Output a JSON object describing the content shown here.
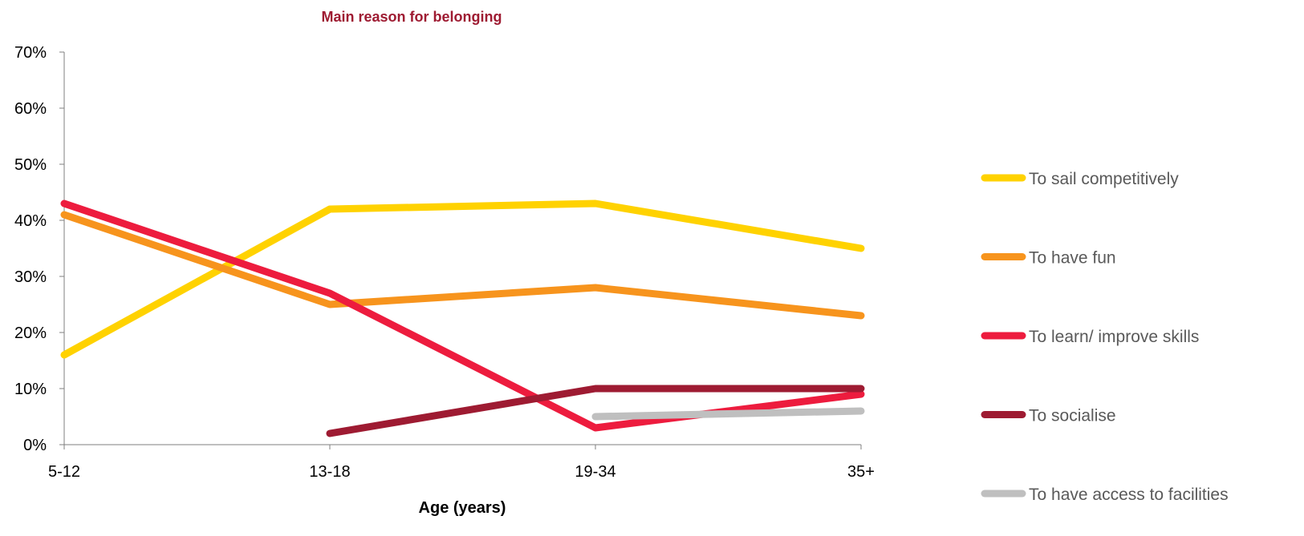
{
  "chart_data": {
    "type": "line",
    "title": "Main reason for belonging",
    "xlabel": "Age (years)",
    "ylabel": "",
    "categories": [
      "5-12",
      "13-18",
      "19-34",
      "35+"
    ],
    "ylim": [
      0,
      70
    ],
    "yticks": [
      0,
      10,
      20,
      30,
      40,
      50,
      60,
      70
    ],
    "ytick_labels": [
      "0%",
      "10%",
      "20%",
      "30%",
      "40%",
      "50%",
      "60%",
      "70%"
    ],
    "grid": false,
    "legend_position": "right",
    "series": [
      {
        "name": "To sail competitively",
        "color": "#FFD200",
        "values": [
          16,
          42,
          43,
          35
        ]
      },
      {
        "name": "To have fun",
        "color": "#F7941D",
        "values": [
          41,
          25,
          28,
          23
        ]
      },
      {
        "name": "To learn/ improve skills",
        "color": "#ED1C3E",
        "values": [
          43,
          27,
          3,
          9
        ]
      },
      {
        "name": "To socialise",
        "color": "#9E1B32",
        "values": [
          null,
          2,
          10,
          10
        ]
      },
      {
        "name": "To have access to facilities",
        "color": "#BFBFBF",
        "values": [
          null,
          null,
          5,
          6
        ]
      }
    ],
    "title_color": "#9E1B32"
  }
}
